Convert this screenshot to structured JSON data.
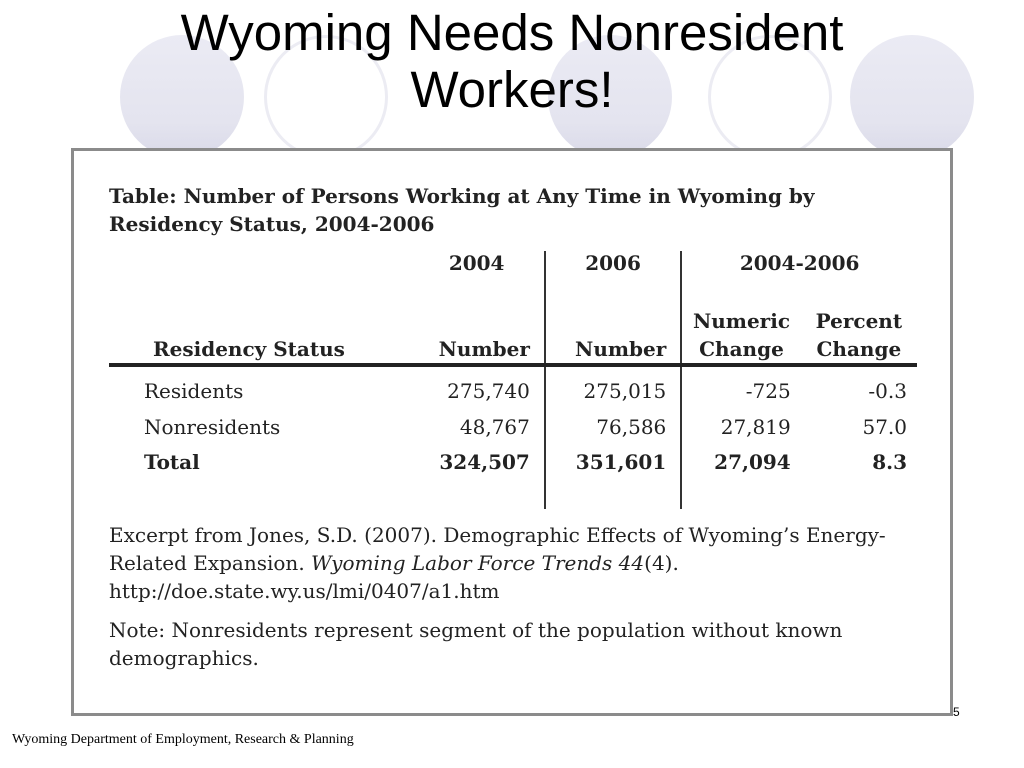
{
  "slide": {
    "title": "Wyoming Needs Nonresident\nWorkers!",
    "slide_number": "5",
    "footer": "Wyoming Department of Employment, Research & Planning"
  },
  "excerpt": {
    "table_title": "Table: Number of Persons Working at Any Time in Wyoming by Residency Status, 2004-2006",
    "group_headers": {
      "y2004": "2004",
      "y2006": "2006",
      "range": "2004-2006"
    },
    "column_headers": {
      "status": "Residency Status",
      "num2004": "Number",
      "num2006": "Number",
      "numeric_change_1": "Numeric",
      "numeric_change_2": "Change",
      "percent_change_1": "Percent",
      "percent_change_2": "Change"
    },
    "rows": [
      {
        "status": "Residents",
        "v2004": "275,740",
        "v2006": "275,015",
        "numeric": "-725",
        "percent": "-0.3"
      },
      {
        "status": "Nonresidents",
        "v2004": "48,767",
        "v2006": "76,586",
        "numeric": "27,819",
        "percent": "57.0"
      },
      {
        "status": "Total",
        "v2004": "324,507",
        "v2006": "351,601",
        "numeric": "27,094",
        "percent": "8.3"
      }
    ],
    "citation": {
      "part1": "Excerpt from Jones, S.D. (2007). Demographic Effects of Wyoming’s Energy-Related Expansion. ",
      "journal": "Wyoming Labor Force Trends 44",
      "part2": "(4). http://doe.state.wy.us/lmi/0407/a1.htm"
    },
    "note": "Note: Nonresidents represent segment of the population without known demographics."
  }
}
